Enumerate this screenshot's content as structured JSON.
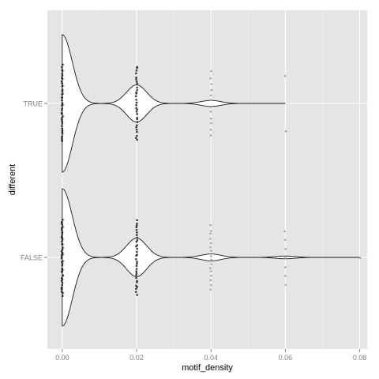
{
  "chart_data": {
    "type": "violin",
    "orientation": "horizontal",
    "xlabel": "motif_density",
    "ylabel": "different",
    "xlim": [
      -0.004,
      0.082
    ],
    "x_ticks": [
      0.0,
      0.02,
      0.04,
      0.06,
      0.08
    ],
    "x_tick_labels": [
      "0.00",
      "0.02",
      "0.04",
      "0.06",
      "0.08"
    ],
    "categories": [
      "TRUE",
      "FALSE"
    ],
    "grid": true,
    "panel_background": "#e5e5e5",
    "violins": [
      {
        "category": "TRUE",
        "x_range": [
          0.0,
          0.06
        ],
        "peaks": [
          {
            "x": 0.0,
            "relative_width": 1.0
          },
          {
            "x": 0.02,
            "relative_width": 0.27
          },
          {
            "x": 0.04,
            "relative_width": 0.044
          },
          {
            "x": 0.06,
            "relative_width": 0.0
          }
        ],
        "points": [
          {
            "x": 0.0,
            "count": 40
          },
          {
            "x": 0.02,
            "count": 30
          },
          {
            "x": 0.04,
            "count": 12
          },
          {
            "x": 0.06,
            "count": 2
          }
        ]
      },
      {
        "category": "FALSE",
        "x_range": [
          0.0,
          0.08
        ],
        "peaks": [
          {
            "x": 0.0,
            "relative_width": 1.0
          },
          {
            "x": 0.02,
            "relative_width": 0.28
          },
          {
            "x": 0.04,
            "relative_width": 0.05
          },
          {
            "x": 0.06,
            "relative_width": 0.02
          },
          {
            "x": 0.08,
            "relative_width": 0.0
          }
        ],
        "points": [
          {
            "x": 0.0,
            "count": 45
          },
          {
            "x": 0.02,
            "count": 32
          },
          {
            "x": 0.04,
            "count": 16
          },
          {
            "x": 0.06,
            "count": 7
          },
          {
            "x": 0.08,
            "count": 1
          }
        ]
      }
    ]
  }
}
